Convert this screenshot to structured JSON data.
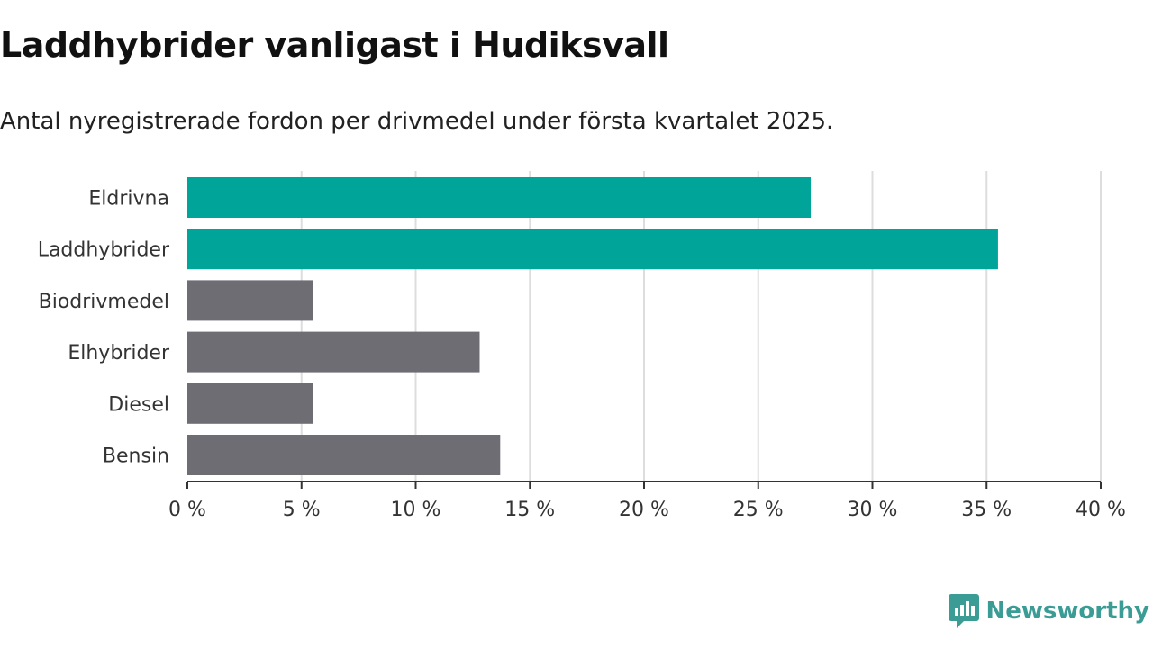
{
  "header": {
    "title": "Laddhybrider vanligast i Hudiksvall",
    "subtitle": "Antal nyregistrerade fordon per drivmedel under första kvartalet 2025."
  },
  "branding": {
    "name": "Newsworthy",
    "icon": "newsworthy-logo-icon",
    "color": "#3a9c94"
  },
  "chart_data": {
    "type": "bar",
    "orientation": "horizontal",
    "categories": [
      "Eldrivna",
      "Laddhybrider",
      "Biodrivmedel",
      "Elhybrider",
      "Diesel",
      "Bensin"
    ],
    "values": [
      27.3,
      35.5,
      5.5,
      12.8,
      5.5,
      13.7
    ],
    "colors": [
      "#00a499",
      "#00a499",
      "#6e6d74",
      "#6e6d74",
      "#6e6d74",
      "#6e6d74"
    ],
    "xlim": [
      0,
      40
    ],
    "xticks": [
      0,
      5,
      10,
      15,
      20,
      25,
      30,
      35,
      40
    ],
    "tick_suffix": " %",
    "grid": true
  }
}
